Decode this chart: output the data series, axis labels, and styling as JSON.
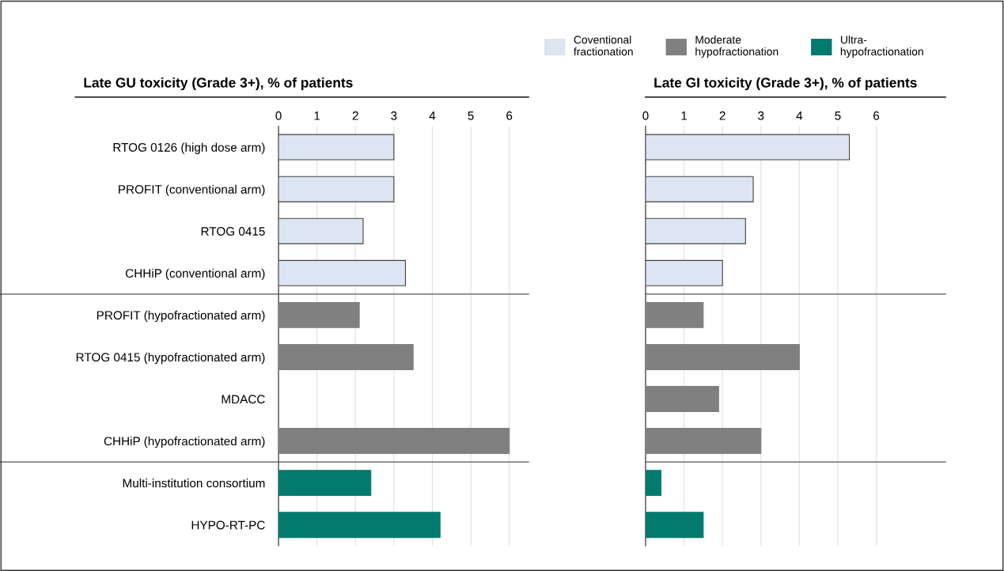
{
  "chart_data": [
    {
      "type": "bar",
      "orientation": "horizontal",
      "title": "Late GU toxicity (Grade 3+), % of patients",
      "categories": [
        "RTOG 0126 (high dose arm)",
        "PROFIT (conventional arm)",
        "RTOG 0415",
        "CHHiP (conventional arm)",
        "PROFIT (hypofractionated arm)",
        "RTOG 0415 (hypofractionated arm)",
        "MDACC",
        "CHHiP (hypofractionated arm)",
        "Multi-institution consortium",
        "HYPO-RT-PC"
      ],
      "series": [
        {
          "name": "Coventional\nfractionation",
          "color": "#dce6f2",
          "values": [
            3.0,
            3.0,
            2.2,
            3.3,
            null,
            null,
            null,
            null,
            null,
            null
          ]
        },
        {
          "name": "Moderate\nhypofractionation",
          "color": "#808080",
          "values": [
            null,
            null,
            null,
            null,
            2.1,
            3.5,
            null,
            6.0,
            null,
            null
          ]
        },
        {
          "name": "Ultra-\nhypofractionation",
          "color": "#037a6e",
          "values": [
            null,
            null,
            null,
            null,
            null,
            null,
            null,
            null,
            2.4,
            4.2
          ]
        }
      ],
      "xlim": [
        0,
        6.5
      ],
      "xticks": [
        0,
        1,
        2,
        3,
        4,
        5,
        6
      ],
      "grid": "x",
      "legend": "top right"
    },
    {
      "type": "bar",
      "orientation": "horizontal",
      "title": "Late GI toxicity (Grade 3+), % of patients",
      "categories": [
        null,
        null,
        null,
        null,
        null,
        null,
        null,
        null,
        null,
        null
      ],
      "series": [
        {
          "color": "#dce6f2",
          "values": [
            5.3,
            2.8,
            2.6,
            2.0,
            null,
            null,
            null,
            null,
            null,
            null
          ]
        },
        {
          "color": "#808080",
          "values": [
            null,
            null,
            null,
            null,
            1.5,
            4.0,
            1.9,
            3.0,
            null,
            null
          ]
        },
        {
          "color": "#037a6e",
          "values": [
            null,
            null,
            null,
            null,
            null,
            null,
            null,
            null,
            0.4,
            1.5
          ]
        }
      ],
      "xlim": [
        0,
        7.8
      ],
      "xticks": [
        0,
        1,
        2,
        3,
        4,
        5,
        6
      ],
      "grid": "x",
      "tick_labels": "x"
    }
  ]
}
